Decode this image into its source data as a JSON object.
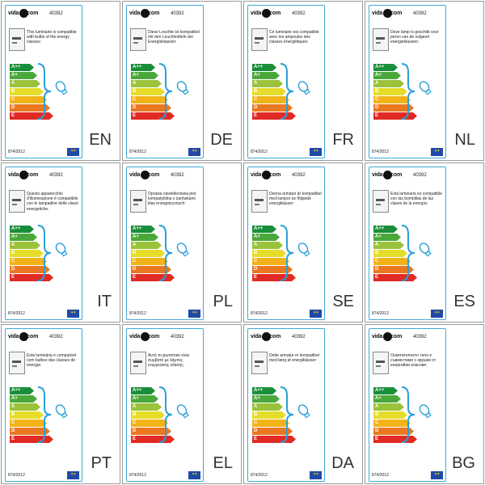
{
  "product_code": "40392",
  "brand": {
    "left": "vida",
    "right": "com"
  },
  "regulation": "874/2012",
  "energy_classes": [
    {
      "label": "A++",
      "color": "#1a8f3a"
    },
    {
      "label": "A+",
      "color": "#4aa83a"
    },
    {
      "label": "A",
      "color": "#9ac23a"
    },
    {
      "label": "B",
      "color": "#e6dc2a"
    },
    {
      "label": "C",
      "color": "#f2b318"
    },
    {
      "label": "D",
      "color": "#ea7820"
    },
    {
      "label": "E",
      "color": "#e12a24"
    }
  ],
  "panels": [
    {
      "lang": "EN",
      "text": "This luminaire is compatible with bulbs of the energy classes:"
    },
    {
      "lang": "DE",
      "text": "Diese Leuchte ist kompatibel mit den Leuchtmitteln der Energieklassen:"
    },
    {
      "lang": "FR",
      "text": "Ce luminaire est compatible avec les ampoules des classes énergétiques:"
    },
    {
      "lang": "NL",
      "text": "Deze lamp is geschikt voor peren van de volgend energieklassen:"
    },
    {
      "lang": "IT",
      "text": "Questo apparecchio d'illuminazione è compatibile con le lampadine delle classi energetiche:"
    },
    {
      "lang": "PL",
      "text": "Oprawa oświetleniowa jest kompatybilna z żarówkami klas energetycznych:"
    },
    {
      "lang": "SE",
      "text": "Denna armatur är kompatibel med lampor av följande energiklasser:"
    },
    {
      "lang": "ES",
      "text": "Esta luminaria es compatible con las bombillas de las clases de la energía:"
    },
    {
      "lang": "PT",
      "text": "Esta luminária é compativel com bulbos das classes de energia:"
    },
    {
      "lang": "EL",
      "text": "Αυτό το φωτιστικό είναι συμβατό με λάμπες ενεργειακής κλάσης:"
    },
    {
      "lang": "DA",
      "text": "Dette armatur er kompatibel med lærg af energiklasser:"
    },
    {
      "lang": "BG",
      "text": "Осветителното тяло е съвместимо с крушки от енергийни класове:"
    }
  ]
}
